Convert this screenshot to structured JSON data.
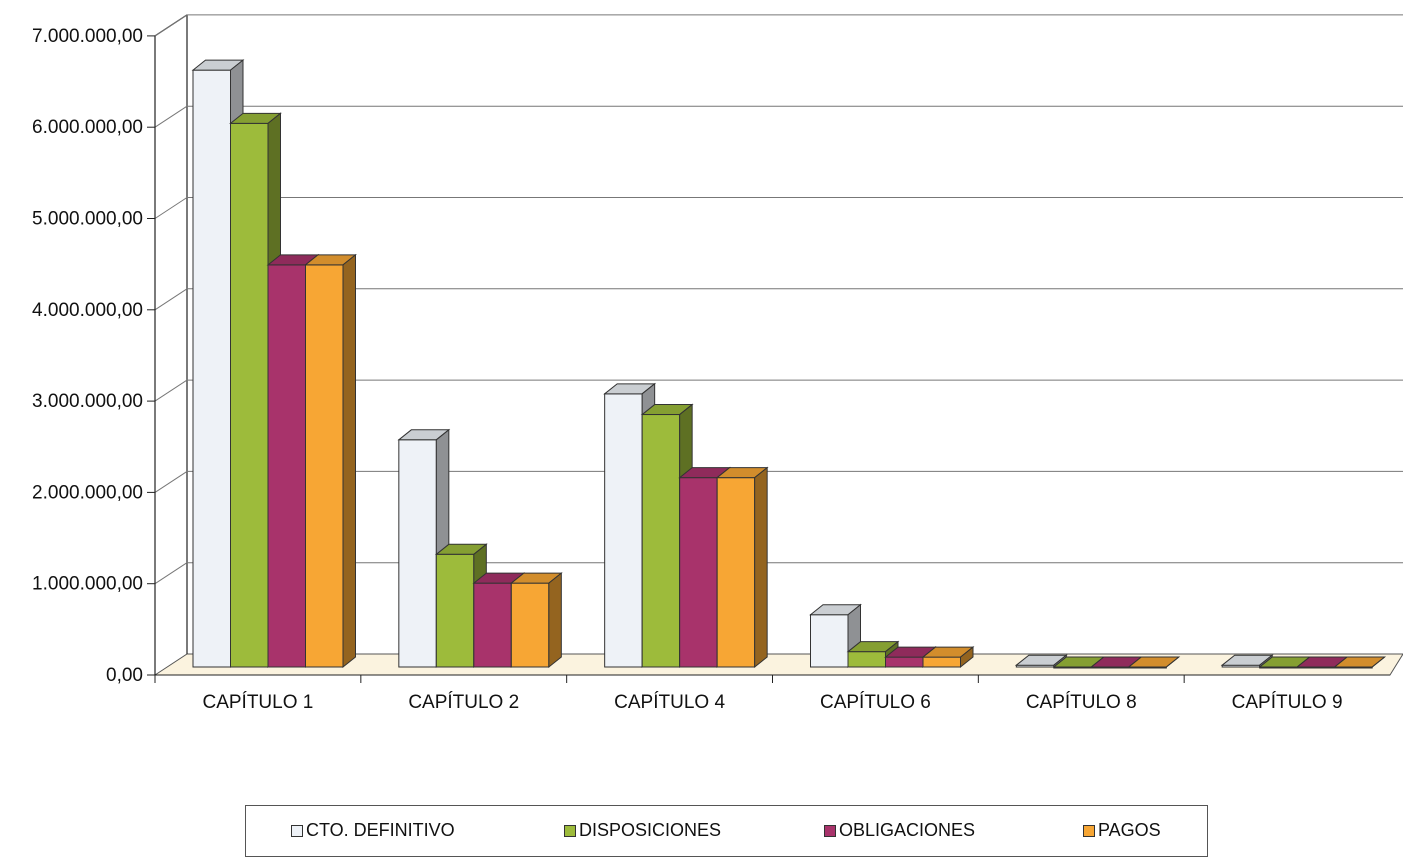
{
  "chart_data": {
    "type": "bar",
    "categories": [
      "CAPÍTULO 1",
      "CAPÍTULO 2",
      "CAPÍTULO 4",
      "CAPÍTULO 6",
      "CAPÍTULO 8",
      "CAPÍTULO 9"
    ],
    "series": [
      {
        "name": "CTO. DEFINITIVO",
        "color": "#eef2f7",
        "values": [
          6620000,
          2520000,
          3030000,
          580000,
          20000,
          20000
        ]
      },
      {
        "name": "DISPOSICIONES",
        "color": "#9dbb3b",
        "values": [
          6030000,
          1250000,
          2800000,
          170000,
          0,
          0
        ]
      },
      {
        "name": "OBLIGACIONES",
        "color": "#a8336b",
        "values": [
          4460000,
          930000,
          2100000,
          110000,
          0,
          0
        ]
      },
      {
        "name": "PAGOS",
        "color": "#f7a634",
        "values": [
          4460000,
          930000,
          2100000,
          110000,
          0,
          0
        ]
      }
    ],
    "yticks": [
      "0,00",
      "1.000.000,00",
      "2.000.000,00",
      "3.000.000,00",
      "4.000.000,00",
      "5.000.000,00",
      "6.000.000,00",
      "7.000.000,00"
    ],
    "ylim": [
      0,
      7000000
    ],
    "grid": true,
    "legend_position": "bottom",
    "title": "",
    "xlabel": "",
    "ylabel": ""
  }
}
